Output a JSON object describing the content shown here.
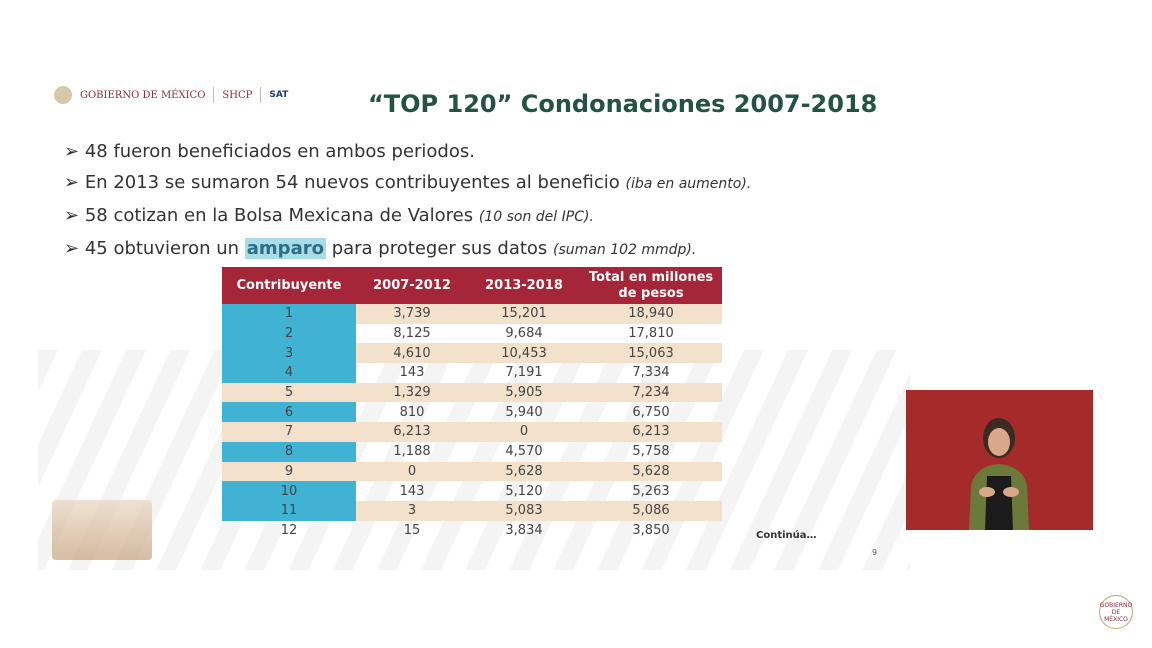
{
  "header": {
    "logos": {
      "gobierno": "GOBIERNO DE MÉXICO",
      "shcp": "SHCP",
      "sat": "SAT"
    },
    "title": "“TOP 120” Condonaciones 2007-2018"
  },
  "bullets": [
    {
      "text": "48 fueron beneficiados en ambos periodos.",
      "note": ""
    },
    {
      "text": "En 2013 se sumaron 54 nuevos contribuyentes al beneficio",
      "note": "(iba en aumento)."
    },
    {
      "text": "58 cotizan en la Bolsa Mexicana de Valores",
      "note": "(10 son del IPC)."
    },
    {
      "pre": "45 obtuvieron un",
      "highlight": "amparo",
      "post": "para proteger sus datos",
      "note": "(suman 102 mmdp)."
    }
  ],
  "table": {
    "headers": [
      "Contribuyente",
      "2007-2012",
      "2013-2018",
      "Total en millones de pesos"
    ],
    "rows": [
      [
        "1",
        "3,739",
        "15,201",
        "18,940"
      ],
      [
        "2",
        "8,125",
        "9,684",
        "17,810"
      ],
      [
        "3",
        "4,610",
        "10,453",
        "15,063"
      ],
      [
        "4",
        "143",
        "7,191",
        "7,334"
      ],
      [
        "5",
        "1,329",
        "5,905",
        "7,234"
      ],
      [
        "6",
        "810",
        "5,940",
        "6,750"
      ],
      [
        "7",
        "6,213",
        "0",
        "6,213"
      ],
      [
        "8",
        "1,188",
        "4,570",
        "5,758"
      ],
      [
        "9",
        "0",
        "5,628",
        "5,628"
      ],
      [
        "10",
        "143",
        "5,120",
        "5,263"
      ],
      [
        "11",
        "3",
        "5,083",
        "5,086"
      ],
      [
        "12",
        "15",
        "3,834",
        "3,850"
      ]
    ],
    "highlighted_rows": [
      "1",
      "2",
      "3",
      "4",
      "6",
      "8",
      "10",
      "11"
    ],
    "colors": {
      "header": "#a62639",
      "stripe": "#f3e1cb",
      "highlight": "#40b3d4"
    }
  },
  "footer": {
    "continua": "Continúa…",
    "page": "9"
  },
  "corner_logo": "GOBIERNO DE MÉXICO"
}
